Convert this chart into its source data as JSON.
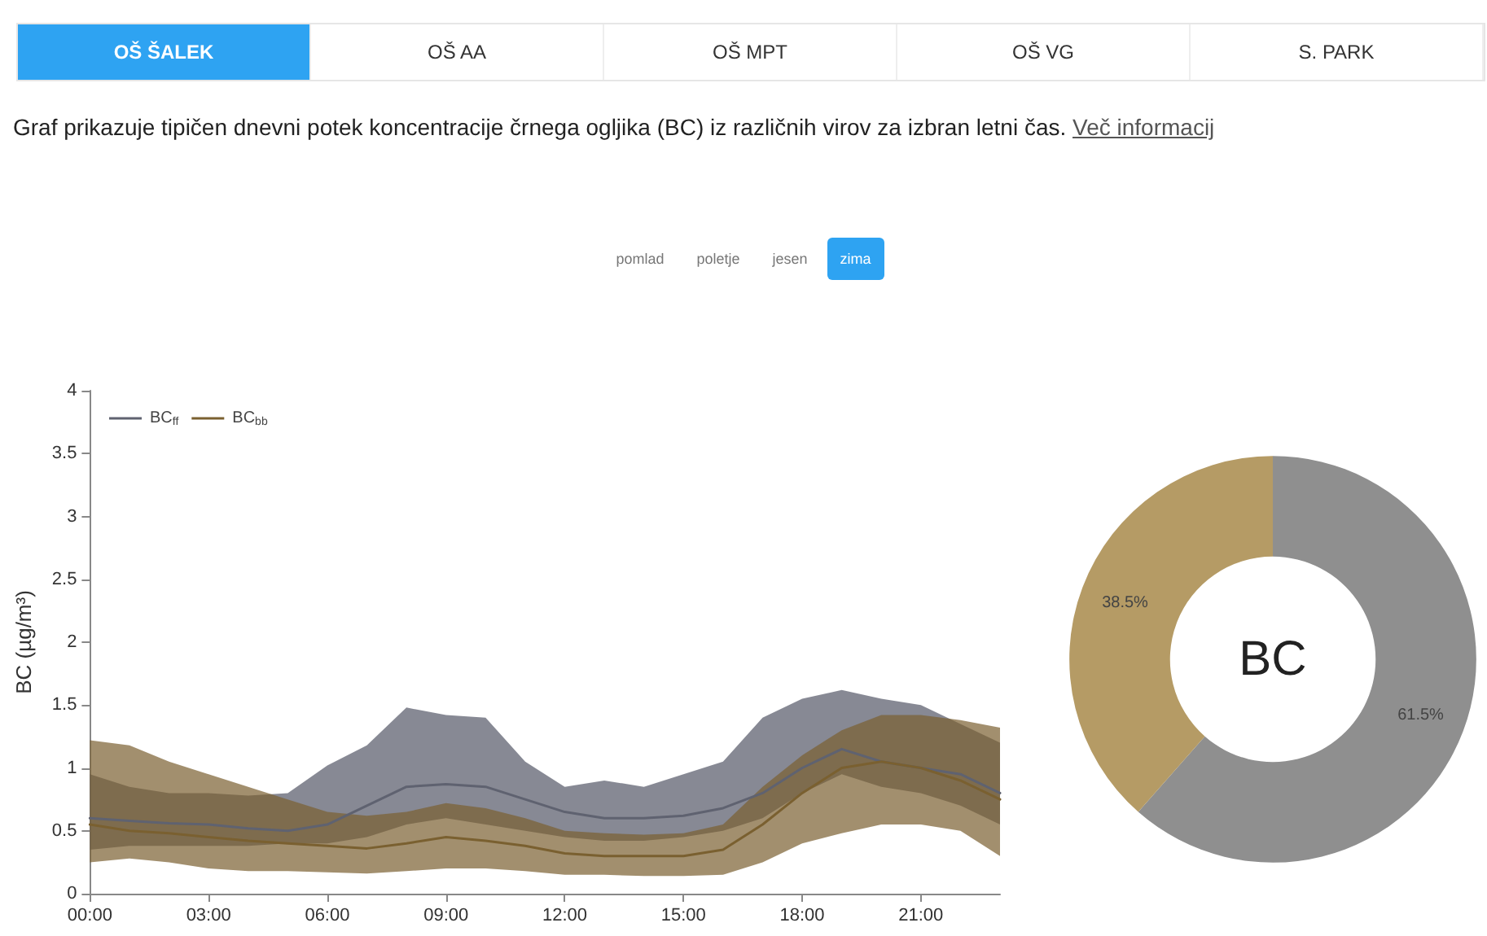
{
  "chart_data": [
    {
      "type": "line",
      "ylabel": "BC (µg/m³)",
      "legend": "top left",
      "grid": false,
      "marker": "none",
      "line_style": "solid",
      "annotations": [
        "OŠ ŠALEK",
        "OŠ AA",
        "OŠ MPT",
        "OŠ VG",
        "S. PARK",
        "Graf prikazuje tipičen dnevni potek koncentracije črnega ogljika (BC) iz različnih virov za izbran letni čas.",
        "Več informacij",
        "pomlad",
        "poletje",
        "jesen",
        "zima"
      ],
      "x": [
        0,
        1,
        2,
        3,
        4,
        5,
        6,
        7,
        8,
        9,
        10,
        11,
        12,
        13,
        14,
        15,
        16,
        17,
        18,
        19,
        20,
        21,
        22,
        23
      ],
      "xlim": [
        0,
        23
      ],
      "xticks": [
        {
          "value": 0,
          "label": "00:00"
        },
        {
          "value": 3,
          "label": "03:00"
        },
        {
          "value": 6,
          "label": "06:00"
        },
        {
          "value": 9,
          "label": "09:00"
        },
        {
          "value": 12,
          "label": "12:00"
        },
        {
          "value": 15,
          "label": "15:00"
        },
        {
          "value": 18,
          "label": "18:00"
        },
        {
          "value": 21,
          "label": "21:00"
        }
      ],
      "ylim": [
        0,
        4
      ],
      "yticks": [
        0,
        0.5,
        1,
        1.5,
        2,
        2.5,
        3,
        3.5,
        4
      ],
      "series": [
        {
          "name": "BC$_{ff}$",
          "color": "#5f6270",
          "values": [
            0.6,
            0.58,
            0.56,
            0.55,
            0.52,
            0.5,
            0.55,
            0.7,
            0.85,
            0.87,
            0.85,
            0.75,
            0.65,
            0.6,
            0.6,
            0.62,
            0.68,
            0.8,
            1.0,
            1.15,
            1.05,
            1.0,
            0.95,
            0.8
          ],
          "lower": [
            0.35,
            0.38,
            0.38,
            0.38,
            0.38,
            0.4,
            0.4,
            0.45,
            0.55,
            0.6,
            0.55,
            0.5,
            0.45,
            0.42,
            0.42,
            0.45,
            0.5,
            0.6,
            0.8,
            0.95,
            0.85,
            0.8,
            0.7,
            0.55
          ],
          "upper": [
            0.95,
            0.85,
            0.8,
            0.8,
            0.78,
            0.8,
            1.02,
            1.18,
            1.48,
            1.42,
            1.4,
            1.05,
            0.85,
            0.9,
            0.85,
            0.95,
            1.05,
            1.4,
            1.55,
            1.62,
            1.55,
            1.5,
            1.35,
            1.2
          ]
        },
        {
          "name": "BC$_{bb}$",
          "color": "#7a6030",
          "values": [
            0.55,
            0.5,
            0.48,
            0.45,
            0.42,
            0.4,
            0.38,
            0.36,
            0.4,
            0.45,
            0.42,
            0.38,
            0.32,
            0.3,
            0.3,
            0.3,
            0.35,
            0.55,
            0.8,
            1.0,
            1.05,
            1.0,
            0.9,
            0.75
          ],
          "lower": [
            0.25,
            0.28,
            0.25,
            0.2,
            0.18,
            0.18,
            0.17,
            0.16,
            0.18,
            0.2,
            0.2,
            0.18,
            0.15,
            0.15,
            0.14,
            0.14,
            0.15,
            0.25,
            0.4,
            0.48,
            0.55,
            0.55,
            0.5,
            0.3
          ],
          "upper": [
            1.22,
            1.18,
            1.05,
            0.95,
            0.85,
            0.75,
            0.65,
            0.62,
            0.65,
            0.72,
            0.68,
            0.6,
            0.5,
            0.48,
            0.47,
            0.48,
            0.55,
            0.85,
            1.1,
            1.3,
            1.42,
            1.42,
            1.38,
            1.32
          ]
        }
      ]
    },
    {
      "type": "donut",
      "title": "BC",
      "categories": [
        null,
        null
      ],
      "values": [
        61.5,
        38.5
      ],
      "colors": [
        "#8f8f8f",
        "#b59b65"
      ],
      "value_labels": [
        "61.5%",
        "38.5%"
      ]
    }
  ]
}
